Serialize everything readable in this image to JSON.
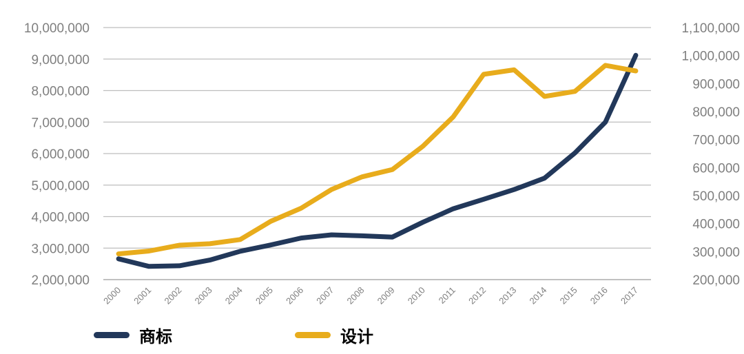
{
  "chart_data": {
    "type": "line",
    "x": [
      "2000",
      "2001",
      "2002",
      "2003",
      "2004",
      "2005",
      "2006",
      "2007",
      "2008",
      "2009",
      "2010",
      "2011",
      "2012",
      "2013",
      "2014",
      "2015",
      "2016",
      "2017"
    ],
    "left_axis": {
      "ylim": [
        2000000,
        10000000
      ],
      "ticks": [
        "2,000,000",
        "3,000,000",
        "4,000,000",
        "5,000,000",
        "6,000,000",
        "7,000,000",
        "8,000,000",
        "9,000,000",
        "10,000,000"
      ]
    },
    "right_axis": {
      "ylim": [
        200000,
        1100000
      ],
      "ticks": [
        "200,000",
        "300,000",
        "400,000",
        "500,000",
        "600,000",
        "700,000",
        "800,000",
        "900,000",
        "1,000,000",
        "1,100,000"
      ]
    },
    "series": [
      {
        "name": "商标",
        "axis": "left",
        "color": "#22385a",
        "values": [
          2660000,
          2420000,
          2440000,
          2620000,
          2900000,
          3100000,
          3320000,
          3420000,
          3390000,
          3350000,
          3820000,
          4250000,
          4550000,
          4860000,
          5220000,
          6020000,
          7000000,
          9120000
        ]
      },
      {
        "name": "设计",
        "axis": "right",
        "color": "#e8ac1c",
        "values": [
          292000,
          302000,
          323000,
          328000,
          343000,
          408000,
          455000,
          522000,
          567000,
          593000,
          676000,
          781000,
          933000,
          949000,
          854000,
          872000,
          965000,
          945000
        ]
      }
    ],
    "grid": true,
    "legend_position": "bottom-left"
  }
}
